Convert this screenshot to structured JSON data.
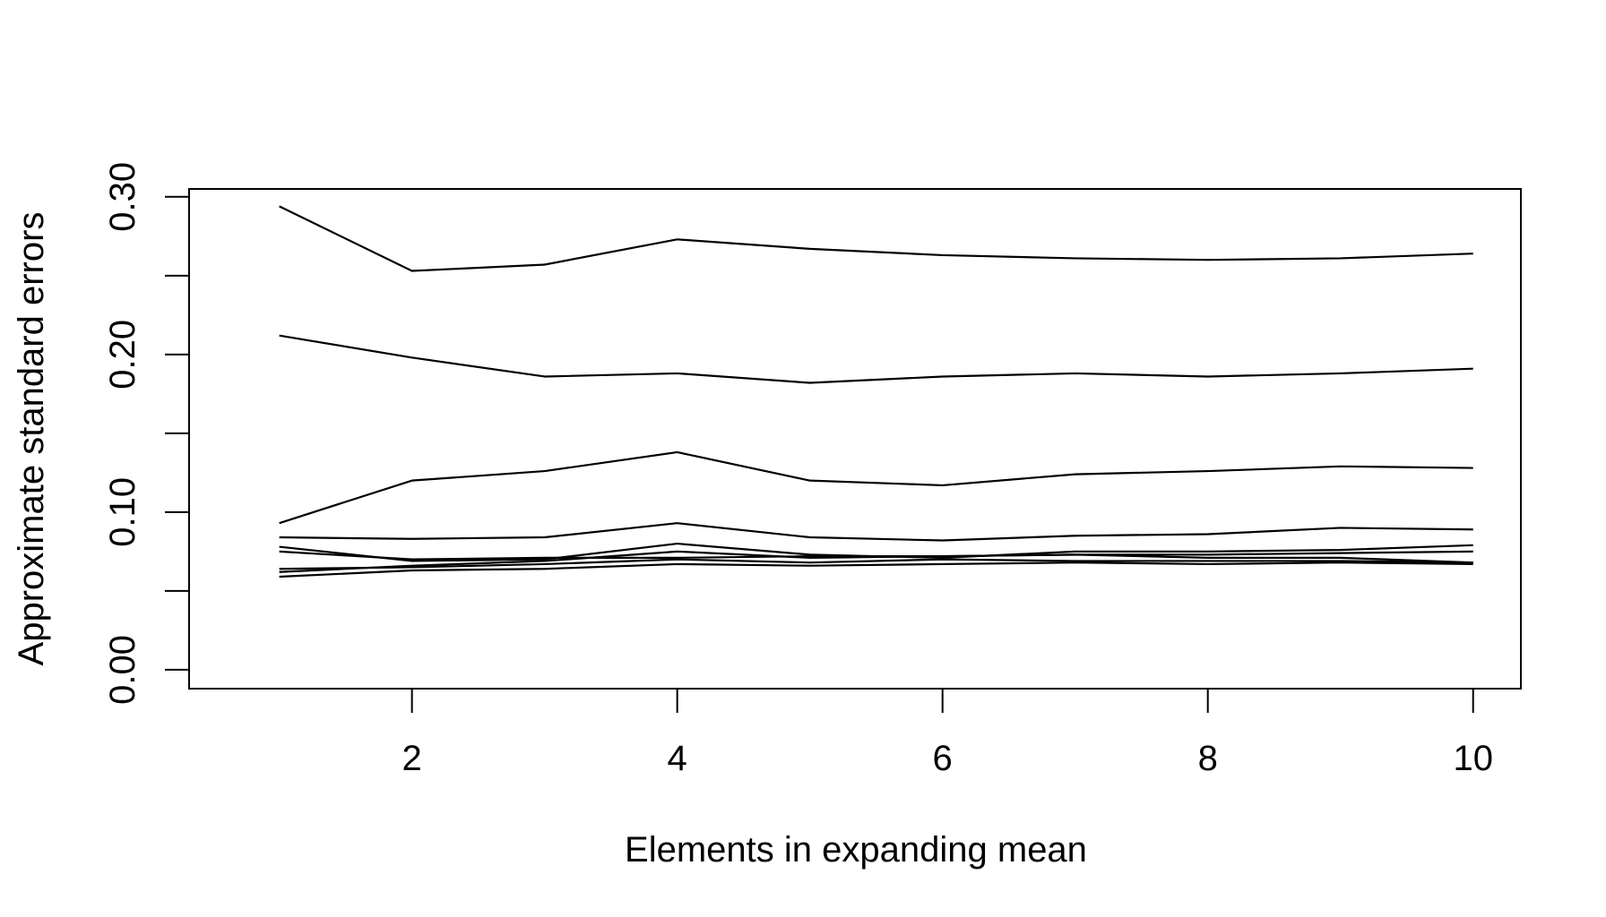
{
  "chart_data": {
    "type": "line",
    "title": "",
    "xlabel": "Elements in expanding mean",
    "ylabel": "Approximate standard errors",
    "xlim": [
      0.32,
      10.36
    ],
    "ylim": [
      -0.012,
      0.305
    ],
    "x_ticks": [
      2,
      4,
      6,
      8,
      10
    ],
    "x_tick_labels": [
      "2",
      "4",
      "6",
      "8",
      "10"
    ],
    "y_ticks": [
      0.0,
      0.05,
      0.1,
      0.15,
      0.2,
      0.25,
      0.3
    ],
    "y_tick_labels": [
      "0.00",
      "",
      "0.10",
      "",
      "0.20",
      "",
      "0.30"
    ],
    "grid": false,
    "legend": "none",
    "line_color": "#000000",
    "x": [
      1,
      2,
      3,
      4,
      5,
      6,
      7,
      8,
      9,
      10
    ],
    "series": [
      {
        "values": [
          0.294,
          0.253,
          0.257,
          0.273,
          0.267,
          0.263,
          0.261,
          0.26,
          0.261,
          0.264
        ]
      },
      {
        "values": [
          0.212,
          0.198,
          0.186,
          0.188,
          0.182,
          0.186,
          0.188,
          0.186,
          0.188,
          0.191
        ]
      },
      {
        "values": [
          0.093,
          0.12,
          0.126,
          0.138,
          0.12,
          0.117,
          0.124,
          0.126,
          0.129,
          0.128
        ]
      },
      {
        "values": [
          0.084,
          0.083,
          0.084,
          0.093,
          0.084,
          0.082,
          0.085,
          0.086,
          0.09,
          0.089
        ]
      },
      {
        "values": [
          0.078,
          0.069,
          0.07,
          0.08,
          0.073,
          0.071,
          0.075,
          0.075,
          0.076,
          0.079
        ]
      },
      {
        "values": [
          0.075,
          0.07,
          0.071,
          0.071,
          0.072,
          0.072,
          0.073,
          0.073,
          0.074,
          0.075
        ]
      },
      {
        "values": [
          0.062,
          0.066,
          0.069,
          0.075,
          0.071,
          0.072,
          0.073,
          0.071,
          0.071,
          0.068
        ]
      },
      {
        "values": [
          0.064,
          0.065,
          0.067,
          0.07,
          0.068,
          0.07,
          0.069,
          0.069,
          0.069,
          0.068
        ]
      },
      {
        "values": [
          0.059,
          0.063,
          0.064,
          0.067,
          0.066,
          0.067,
          0.068,
          0.067,
          0.068,
          0.067
        ]
      }
    ]
  }
}
